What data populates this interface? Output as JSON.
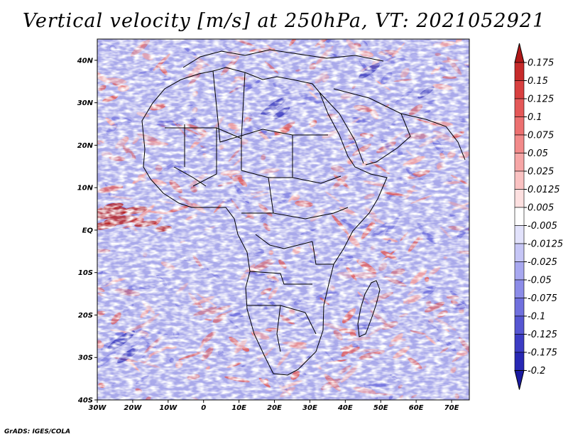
{
  "title": "Vertical velocity [m/s] at 250hPa, VT: 2021052921",
  "credit": "GrADS: IGES/COLA",
  "lat_labels": [
    "40N",
    "30N",
    "20N",
    "10N",
    "EQ",
    "10S",
    "20S",
    "30S",
    "40S"
  ],
  "lat_values": [
    40,
    30,
    20,
    10,
    0,
    -10,
    -20,
    -30,
    -40
  ],
  "lon_labels": [
    "30W",
    "20W",
    "10W",
    "0",
    "10E",
    "20E",
    "30E",
    "40E",
    "50E",
    "60E",
    "70E"
  ],
  "lon_values": [
    -30,
    -20,
    -10,
    0,
    10,
    20,
    30,
    40,
    50,
    60,
    70
  ],
  "map_extent": {
    "lon_min": -30,
    "lon_max": 75,
    "lat_min": -40,
    "lat_max": 45
  },
  "colorbar": {
    "labels": [
      "0.175",
      "0.15",
      "0.125",
      "0.1",
      "0.075",
      "0.05",
      "0.025",
      "0.0125",
      "0.005",
      "-0.005",
      "-0.0125",
      "-0.025",
      "-0.05",
      "-0.075",
      "-0.1",
      "-0.125",
      "-0.175",
      "-0.2"
    ],
    "colors": [
      "#b01818",
      "#c62a2a",
      "#d84040",
      "#e45858",
      "#ec7070",
      "#f28a8a",
      "#f6a6a6",
      "#fac2c2",
      "#fde0e0",
      "#ffffff",
      "#e2e2fb",
      "#c6c6f6",
      "#a8a8f0",
      "#8c8ce8",
      "#7070de",
      "#5656d2",
      "#3c3cc4",
      "#2828b4",
      "#1a1aa0"
    ]
  },
  "field_colors": {
    "red": "#e06060",
    "pink": "#f2a0a0",
    "blue": "#7070dc",
    "light_blue": "#b4b4f0",
    "dark_red": "#b82020",
    "dark_blue": "#3030b8",
    "base": "#a9a9ea"
  }
}
